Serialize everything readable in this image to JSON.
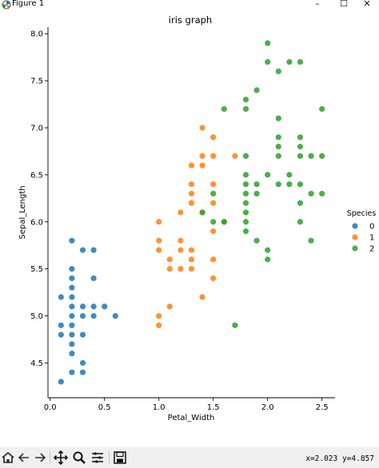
{
  "window": {
    "title": "Figure 1"
  },
  "toolbar": {
    "coords": "x=2.023 y=4.857"
  },
  "colors": {
    "setosa": "#1f77b4",
    "versicolor": "#ff7f0e",
    "virginica": "#2ca02c",
    "axis": "#000000"
  },
  "chart_data": {
    "type": "scatter",
    "title": "iris graph",
    "xlabel": "Petal_Width",
    "ylabel": "Sepal_Length",
    "xlim": [
      -0.02,
      2.62
    ],
    "ylim": [
      4.13,
      8.07
    ],
    "xticks": [
      0.0,
      0.5,
      1.0,
      1.5,
      2.0,
      2.5
    ],
    "xtick_labels": [
      "0.0",
      "0.5",
      "1.0",
      "1.5",
      "2.0",
      "2.5"
    ],
    "yticks": [
      4.5,
      5.0,
      5.5,
      6.0,
      6.5,
      7.0,
      7.5,
      8.0
    ],
    "ytick_labels": [
      "4.5",
      "5.0",
      "5.5",
      "6.0",
      "6.5",
      "7.0",
      "7.5",
      "8.0"
    ],
    "grid": false,
    "legend": {
      "title": "Species",
      "placement": "right"
    },
    "series": [
      {
        "name": "0",
        "color": "#1f77b4",
        "points": [
          [
            0.1,
            4.3
          ],
          [
            0.1,
            4.8
          ],
          [
            0.1,
            4.9
          ],
          [
            0.1,
            5.2
          ],
          [
            0.2,
            4.4
          ],
          [
            0.2,
            4.6
          ],
          [
            0.2,
            4.7
          ],
          [
            0.2,
            4.8
          ],
          [
            0.2,
            4.9
          ],
          [
            0.2,
            5.0
          ],
          [
            0.2,
            5.1
          ],
          [
            0.2,
            5.2
          ],
          [
            0.2,
            5.3
          ],
          [
            0.2,
            5.4
          ],
          [
            0.2,
            5.5
          ],
          [
            0.2,
            5.8
          ],
          [
            0.3,
            4.4
          ],
          [
            0.3,
            4.5
          ],
          [
            0.3,
            4.8
          ],
          [
            0.3,
            5.0
          ],
          [
            0.3,
            5.1
          ],
          [
            0.3,
            5.7
          ],
          [
            0.4,
            5.0
          ],
          [
            0.4,
            5.1
          ],
          [
            0.4,
            5.4
          ],
          [
            0.4,
            5.7
          ],
          [
            0.5,
            5.1
          ],
          [
            0.6,
            5.0
          ]
        ]
      },
      {
        "name": "1",
        "color": "#ff7f0e",
        "points": [
          [
            1.0,
            4.9
          ],
          [
            1.0,
            5.0
          ],
          [
            1.0,
            5.7
          ],
          [
            1.0,
            5.8
          ],
          [
            1.0,
            6.0
          ],
          [
            1.1,
            5.1
          ],
          [
            1.1,
            5.5
          ],
          [
            1.1,
            5.6
          ],
          [
            1.2,
            5.5
          ],
          [
            1.2,
            5.7
          ],
          [
            1.2,
            5.8
          ],
          [
            1.2,
            6.1
          ],
          [
            1.3,
            5.5
          ],
          [
            1.3,
            5.6
          ],
          [
            1.3,
            5.7
          ],
          [
            1.3,
            6.2
          ],
          [
            1.3,
            6.3
          ],
          [
            1.3,
            6.4
          ],
          [
            1.3,
            6.6
          ],
          [
            1.4,
            5.2
          ],
          [
            1.4,
            6.1
          ],
          [
            1.4,
            6.6
          ],
          [
            1.4,
            6.7
          ],
          [
            1.4,
            7.0
          ],
          [
            1.5,
            5.4
          ],
          [
            1.5,
            5.6
          ],
          [
            1.5,
            5.9
          ],
          [
            1.5,
            6.2
          ],
          [
            1.5,
            6.4
          ],
          [
            1.5,
            6.7
          ],
          [
            1.5,
            6.9
          ],
          [
            1.6,
            6.0
          ],
          [
            1.7,
            6.7
          ]
        ]
      },
      {
        "name": "2",
        "color": "#2ca02c",
        "points": [
          [
            1.4,
            6.1
          ],
          [
            1.5,
            6.0
          ],
          [
            1.5,
            6.3
          ],
          [
            1.6,
            6.0
          ],
          [
            1.6,
            7.2
          ],
          [
            1.7,
            4.9
          ],
          [
            1.8,
            5.9
          ],
          [
            1.8,
            6.0
          ],
          [
            1.8,
            6.1
          ],
          [
            1.8,
            6.2
          ],
          [
            1.8,
            6.3
          ],
          [
            1.8,
            6.4
          ],
          [
            1.8,
            6.5
          ],
          [
            1.8,
            6.7
          ],
          [
            1.8,
            7.2
          ],
          [
            1.8,
            7.3
          ],
          [
            1.9,
            5.8
          ],
          [
            1.9,
            6.3
          ],
          [
            1.9,
            6.4
          ],
          [
            1.9,
            7.4
          ],
          [
            2.0,
            5.6
          ],
          [
            2.0,
            5.7
          ],
          [
            2.0,
            6.5
          ],
          [
            2.0,
            7.7
          ],
          [
            2.0,
            7.9
          ],
          [
            2.1,
            6.4
          ],
          [
            2.1,
            6.7
          ],
          [
            2.1,
            6.8
          ],
          [
            2.1,
            6.9
          ],
          [
            2.1,
            7.1
          ],
          [
            2.1,
            7.6
          ],
          [
            2.2,
            6.4
          ],
          [
            2.2,
            6.5
          ],
          [
            2.2,
            7.7
          ],
          [
            2.3,
            6.0
          ],
          [
            2.3,
            6.2
          ],
          [
            2.3,
            6.4
          ],
          [
            2.3,
            6.7
          ],
          [
            2.3,
            6.8
          ],
          [
            2.3,
            6.9
          ],
          [
            2.3,
            7.7
          ],
          [
            2.4,
            5.8
          ],
          [
            2.4,
            6.3
          ],
          [
            2.4,
            6.7
          ],
          [
            2.5,
            6.3
          ],
          [
            2.5,
            6.7
          ],
          [
            2.5,
            7.2
          ]
        ]
      }
    ]
  }
}
